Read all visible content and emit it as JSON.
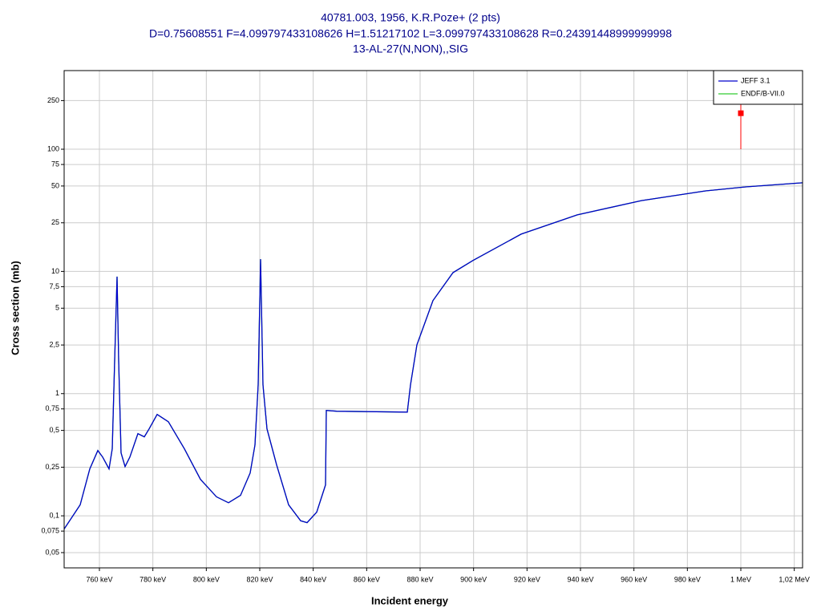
{
  "chart_data": {
    "type": "line",
    "title": "40781.003, 1956, K.R.Poze+ (2 pts)",
    "subtitle": "D=0.75608551 F=4.099797433108626 H=1.51217102 L=3.099797433108628 R=0.24391448999999998",
    "subtitle2": "13-AL-27(N,NON),,SIG",
    "xlabel": "Incident energy",
    "ylabel": "Cross section (mb)",
    "ylog": true,
    "grid": true,
    "legend": "upper right",
    "xlim": [
      746.8,
      1023.1
    ],
    "ylim": [
      0.0375,
      440
    ],
    "xticks": [
      {
        "value": 760,
        "label": "760 keV"
      },
      {
        "value": 780,
        "label": "780 keV"
      },
      {
        "value": 800,
        "label": "800 keV"
      },
      {
        "value": 820,
        "label": "820 keV"
      },
      {
        "value": 840,
        "label": "840 keV"
      },
      {
        "value": 860,
        "label": "860 keV"
      },
      {
        "value": 880,
        "label": "880 keV"
      },
      {
        "value": 900,
        "label": "900 keV"
      },
      {
        "value": 920,
        "label": "920 keV"
      },
      {
        "value": 940,
        "label": "940 keV"
      },
      {
        "value": 960,
        "label": "960 keV"
      },
      {
        "value": 980,
        "label": "980 keV"
      },
      {
        "value": 1000,
        "label": "1 MeV"
      },
      {
        "value": 1020,
        "label": "1,02 MeV"
      }
    ],
    "yticks": [
      {
        "value": 0.05,
        "label": "0,05"
      },
      {
        "value": 0.075,
        "label": "0,075"
      },
      {
        "value": 0.1,
        "label": "0,1"
      },
      {
        "value": 0.25,
        "label": "0,25"
      },
      {
        "value": 0.5,
        "label": "0,5"
      },
      {
        "value": 0.75,
        "label": "0,75"
      },
      1,
      {
        "value": 2.5,
        "label": "2,5"
      },
      5,
      {
        "value": 7.5,
        "label": "7,5"
      },
      10,
      25,
      50,
      75,
      100,
      250
    ],
    "series": [
      {
        "name": "ENDF/B-VII.0",
        "color": "#33cc33",
        "x": [
          746.8,
          752.8,
          756.4,
          759.4,
          761.2,
          763.6,
          764.8,
          765.7,
          766.6,
          767.2,
          768.1,
          769.6,
          771.4,
          774.4,
          776.8,
          778.6,
          781.6,
          785.8,
          791.8,
          797.8,
          803.8,
          808.3,
          812.8,
          816.4,
          818.2,
          819.4,
          820.3,
          821.2,
          822.7,
          826.3,
          830.8,
          835.3,
          837.7,
          841.3,
          844.6,
          844.9,
          848.8,
          875.2,
          876.4,
          878.8,
          884.8,
          892.3,
          899.8,
          917.8,
          938.8,
          962.8,
          986.8,
          1001.8,
          1023.1
        ],
        "values": [
          0.078,
          0.123,
          0.242,
          0.342,
          0.303,
          0.242,
          0.353,
          1.86,
          9.06,
          1.86,
          0.327,
          0.253,
          0.303,
          0.47,
          0.443,
          0.515,
          0.676,
          0.589,
          0.353,
          0.199,
          0.143,
          0.128,
          0.147,
          0.224,
          0.38,
          1.18,
          12.6,
          1.18,
          0.515,
          0.261,
          0.123,
          0.091,
          0.088,
          0.107,
          0.179,
          0.729,
          0.718,
          0.706,
          1.18,
          2.51,
          5.77,
          9.78,
          12.3,
          20.2,
          29.0,
          38.0,
          45.6,
          49.2,
          53.1
        ]
      },
      {
        "name": "JEFF 3.1",
        "color": "#0000cc",
        "x": [
          746.8,
          752.8,
          756.4,
          759.4,
          761.2,
          763.6,
          764.8,
          765.7,
          766.6,
          767.2,
          768.1,
          769.6,
          771.4,
          774.4,
          776.8,
          778.6,
          781.6,
          785.8,
          791.8,
          797.8,
          803.8,
          808.3,
          812.8,
          816.4,
          818.2,
          819.4,
          820.3,
          821.2,
          822.7,
          826.3,
          830.8,
          835.3,
          837.7,
          841.3,
          844.6,
          844.9,
          848.8,
          875.2,
          876.4,
          878.8,
          884.8,
          892.3,
          899.8,
          917.8,
          938.8,
          962.8,
          986.8,
          1001.8,
          1023.1
        ],
        "values": [
          0.078,
          0.123,
          0.242,
          0.342,
          0.303,
          0.242,
          0.353,
          1.86,
          9.06,
          1.86,
          0.327,
          0.253,
          0.303,
          0.47,
          0.443,
          0.515,
          0.676,
          0.589,
          0.353,
          0.199,
          0.143,
          0.128,
          0.147,
          0.224,
          0.38,
          1.18,
          12.6,
          1.18,
          0.515,
          0.261,
          0.123,
          0.091,
          0.088,
          0.107,
          0.179,
          0.729,
          0.718,
          0.706,
          1.18,
          2.51,
          5.77,
          9.78,
          12.3,
          20.2,
          29.0,
          38.0,
          45.6,
          49.2,
          53.1
        ]
      }
    ],
    "points": {
      "color": "#ff0000",
      "x": [
        1000
      ],
      "y": [
        197
      ],
      "yerr_low": [
        97
      ],
      "yerr_high": [
        47
      ]
    }
  }
}
